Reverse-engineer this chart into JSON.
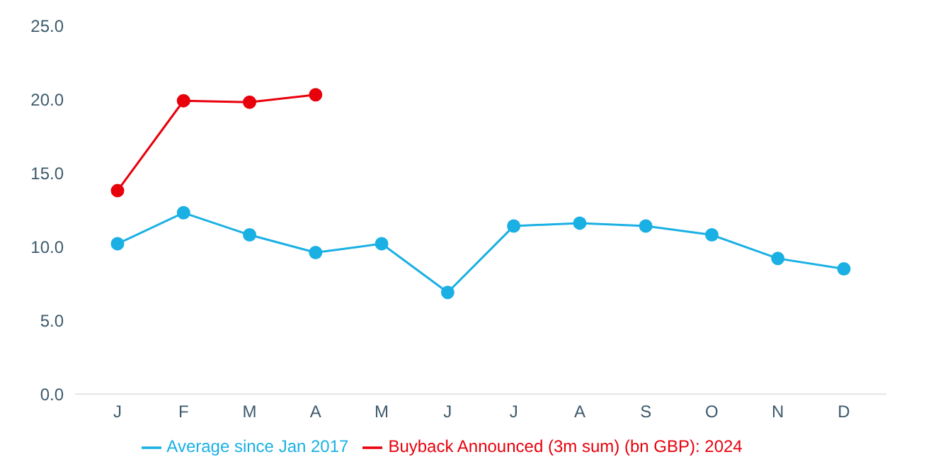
{
  "chart_data": {
    "type": "line",
    "categories": [
      "J",
      "F",
      "M",
      "A",
      "M",
      "J",
      "J",
      "A",
      "S",
      "O",
      "N",
      "D"
    ],
    "series": [
      {
        "name": "Average since Jan 2017",
        "color": "#1ab0e4",
        "values": [
          10.2,
          12.3,
          10.8,
          9.6,
          10.2,
          6.9,
          11.4,
          11.6,
          11.4,
          10.8,
          9.2,
          8.5
        ]
      },
      {
        "name": "Buyback Announced (3m sum) (bn GBP): 2024",
        "color": "#e8000b",
        "values": [
          13.8,
          19.9,
          19.8,
          20.3,
          null,
          null,
          null,
          null,
          null,
          null,
          null,
          null
        ]
      }
    ],
    "ylim": [
      0,
      25
    ],
    "yticks": [
      {
        "value": 0,
        "label": "0.0"
      },
      {
        "value": 5,
        "label": "5.0"
      },
      {
        "value": 10,
        "label": "10.0"
      },
      {
        "value": 15,
        "label": "15.0"
      },
      {
        "value": 20,
        "label": "20.0"
      },
      {
        "value": 25,
        "label": "25.0"
      }
    ],
    "grid": false,
    "legend": "bottom",
    "marker": "circle",
    "line_style": "solid"
  }
}
